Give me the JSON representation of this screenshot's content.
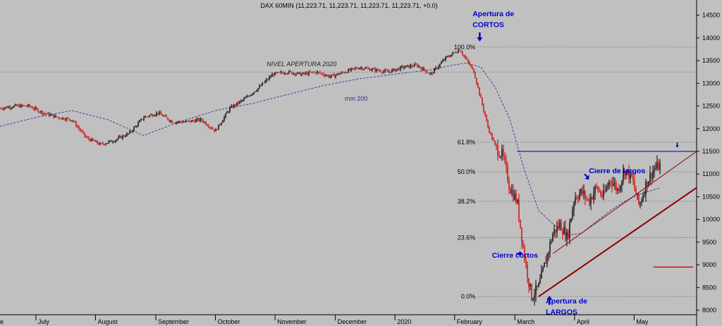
{
  "header": {
    "title": "DAX 60MIN (11,223.71, 11,223.71, 11,223.71, 11,223.71, +0.0)"
  },
  "colors": {
    "background": "#c0c0c0",
    "up_candle": "#000000",
    "down_candle": "#d40000",
    "annotation": "#0000cc",
    "ma": "#3a2a9a",
    "trendline": "#8b0000",
    "resistance": "#2020c0",
    "target": "#e00000"
  },
  "chart_data": {
    "type": "line",
    "title": "DAX 60MIN (11,223.71, 11,223.71, 11,223.71, 11,223.71, +0.0)",
    "xlabel": "",
    "ylabel": "",
    "grid": false,
    "y_range": [
      7900,
      14650
    ],
    "y_ticks": [
      8000,
      8500,
      9000,
      9500,
      10000,
      10500,
      11000,
      11500,
      12000,
      12500,
      13000,
      13500,
      14000,
      14500
    ],
    "x_range": [
      2019.45,
      2020.42
    ],
    "month_labels": [
      {
        "t": 2019.5,
        "label": "July"
      },
      {
        "t": 2019.583,
        "label": "August"
      },
      {
        "t": 2019.667,
        "label": "September"
      },
      {
        "t": 2019.75,
        "label": "October"
      },
      {
        "t": 2019.833,
        "label": "November"
      },
      {
        "t": 2019.917,
        "label": "December"
      },
      {
        "t": 2020.0,
        "label": "2020"
      },
      {
        "t": 2020.083,
        "label": "February"
      },
      {
        "t": 2020.167,
        "label": "March"
      },
      {
        "t": 2020.25,
        "label": "April"
      },
      {
        "t": 2020.333,
        "label": "May"
      }
    ],
    "left_partial_label": "e",
    "series": [
      {
        "type": "candles",
        "x": [
          2019.45,
          2019.47,
          2019.49,
          2019.51,
          2019.53,
          2019.55,
          2019.57,
          2019.59,
          2019.61,
          2019.63,
          2019.65,
          2019.67,
          2019.69,
          2019.71,
          2019.73,
          2019.75,
          2019.77,
          2019.79,
          2019.81,
          2019.83,
          2019.85,
          2019.87,
          2019.89,
          2019.91,
          2019.93,
          2019.95,
          2019.97,
          2019.99,
          2020.01,
          2020.03,
          2020.05,
          2020.07,
          2020.09,
          2020.11,
          2020.13,
          2020.14,
          2020.15,
          2020.16,
          2020.17,
          2020.18,
          2020.19,
          2020.2,
          2020.21,
          2020.22,
          2020.23,
          2020.24,
          2020.25,
          2020.26,
          2020.27,
          2020.28,
          2020.29,
          2020.3,
          2020.31,
          2020.32,
          2020.33,
          2020.34,
          2020.35,
          2020.36,
          2020.37
        ],
        "close": [
          12450,
          12500,
          12500,
          12350,
          12250,
          12200,
          11800,
          11650,
          11750,
          11900,
          12250,
          12350,
          12150,
          12150,
          12200,
          11950,
          12450,
          12650,
          12900,
          13200,
          13250,
          13200,
          13250,
          13150,
          13250,
          13350,
          13300,
          13250,
          13350,
          13400,
          13200,
          13550,
          13750,
          13250,
          12000,
          11600,
          11400,
          10700,
          10400,
          9200,
          8300,
          8500,
          9100,
          9700,
          9900,
          9600,
          10500,
          10600,
          10400,
          10700,
          10500,
          10900,
          10650,
          11100,
          10900,
          10300,
          10800,
          11100,
          11200
        ]
      },
      {
        "type": "dashed",
        "name": "mm 200",
        "x": [
          2019.45,
          2019.5,
          2019.55,
          2019.6,
          2019.65,
          2019.7,
          2019.75,
          2019.8,
          2019.85,
          2019.9,
          2019.95,
          2020.0,
          2020.05,
          2020.08,
          2020.1,
          2020.12,
          2020.14,
          2020.16,
          2020.18,
          2020.2,
          2020.22,
          2020.24,
          2020.26,
          2020.28,
          2020.3,
          2020.32,
          2020.34,
          2020.36,
          2020.37
        ],
        "y": [
          12050,
          12250,
          12400,
          12200,
          11850,
          12150,
          12400,
          12550,
          12750,
          12950,
          13100,
          13200,
          13300,
          13400,
          13450,
          13350,
          12900,
          12200,
          11100,
          10200,
          9900,
          9650,
          9700,
          9950,
          10200,
          10400,
          10550,
          10650,
          10700
        ]
      }
    ],
    "fibonacci": [
      {
        "label": "100.0%",
        "value": 13800
      },
      {
        "label": "61.8%",
        "value": 11700
      },
      {
        "label": "50.0%",
        "value": 11050
      },
      {
        "label": "38.2%",
        "value": 10400
      },
      {
        "label": "23.6%",
        "value": 9600
      },
      {
        "label": "0.0%",
        "value": 8300
      }
    ],
    "horizontal_lines": [
      {
        "name": "NIVEL APERTURA 2020",
        "value": 13250,
        "from": 2019.45,
        "to": 2020.42,
        "style": "dashed"
      },
      {
        "name": "resistance",
        "value": 11500,
        "from": 2020.17,
        "to": 2020.42,
        "style": "solid"
      },
      {
        "name": "target",
        "value": 8950,
        "from": 2020.36,
        "to": 2020.415,
        "style": "solid"
      }
    ],
    "trendlines": [
      {
        "from": [
          2020.2,
          8300
        ],
        "to": [
          2020.42,
          10700
        ],
        "width": 2
      },
      {
        "from": [
          2020.22,
          9250
        ],
        "to": [
          2020.42,
          11500
        ],
        "width": 1
      }
    ],
    "annotations": [
      {
        "text": "NIVEL APERTURA 2020",
        "x": 2019.87,
        "y": 13380,
        "style": "italic-dark"
      },
      {
        "text": "mm 200",
        "x": 2019.93,
        "y": 12620,
        "style": "purple"
      },
      {
        "text": "Apertura de",
        "x": 2020.108,
        "y": 14480,
        "style": "blue-bold"
      },
      {
        "text": "CORTOS",
        "x": 2020.108,
        "y": 14240,
        "style": "blue-bold"
      },
      {
        "text": "Cierre de largos",
        "x": 2020.27,
        "y": 11020,
        "style": "blue-bold"
      },
      {
        "text": "Cierre cortos",
        "x": 2020.135,
        "y": 9160,
        "style": "blue-bold"
      },
      {
        "text": "Apertura de",
        "x": 2020.21,
        "y": 8150,
        "style": "blue-bold"
      },
      {
        "text": "LARGOS",
        "x": 2020.21,
        "y": 7910,
        "style": "blue-bold"
      }
    ],
    "arrows": [
      {
        "name": "cortos-arrow",
        "direction": "down",
        "x": 2020.118,
        "y": 13920
      },
      {
        "name": "largos-arrow",
        "direction": "up",
        "x": 2020.215,
        "y": 8320
      },
      {
        "name": "cierre-largos-arrow",
        "direction": "down-right",
        "x": 2020.27,
        "y": 10880
      },
      {
        "name": "cierre-cortos-arrow",
        "direction": "right",
        "x": 2020.178,
        "y": 9250
      },
      {
        "name": "resistance-arrow",
        "direction": "down",
        "x": 2020.393,
        "y": 11580
      }
    ]
  }
}
